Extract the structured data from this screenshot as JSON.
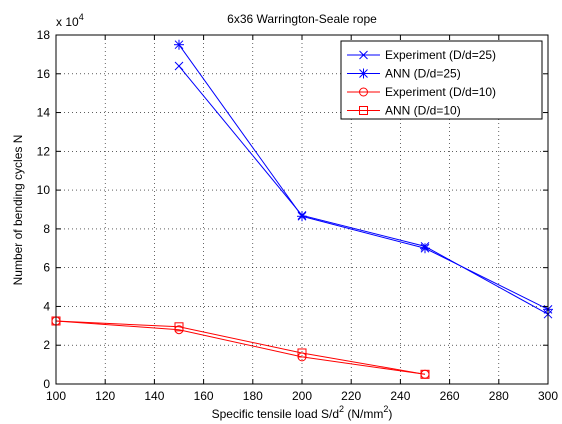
{
  "chart_data": {
    "type": "line",
    "title": "6x36 Warrington-Seale rope",
    "xlabel": "Specific tensile load S/d",
    "xlabel_sup": "2",
    "xlabel_unit": " (N/mm",
    "xlabel_unit_sup": "2",
    "xlabel_close": ")",
    "ylabel": "Number of bending cycles N",
    "y_multiplier_base": "x 10",
    "y_multiplier_exp": "4",
    "xlim": [
      100,
      300
    ],
    "ylim": [
      0,
      18
    ],
    "xticks": [
      100,
      120,
      140,
      160,
      180,
      200,
      220,
      240,
      260,
      280,
      300
    ],
    "yticks": [
      0,
      2,
      4,
      6,
      8,
      10,
      12,
      14,
      16,
      18
    ],
    "y_scale": 10000,
    "grid": "on",
    "legend_position": "top-right",
    "series": [
      {
        "name": "Experiment (D/d=25)",
        "color": "#0000ff",
        "marker": "x",
        "x": [
          150,
          200,
          250,
          300
        ],
        "y": [
          164000,
          87000,
          71000,
          36000
        ]
      },
      {
        "name": "ANN (D/d=25)",
        "color": "#0000ff",
        "marker": "asterisk",
        "x": [
          150,
          200,
          250,
          300
        ],
        "y": [
          175000,
          86500,
          70000,
          38500
        ]
      },
      {
        "name": "Experiment (D/d=10)",
        "color": "#ff0000",
        "marker": "circle",
        "x": [
          100,
          150,
          200,
          250
        ],
        "y": [
          32500,
          28000,
          14000,
          5000
        ]
      },
      {
        "name": "ANN (D/d=10)",
        "color": "#ff0000",
        "marker": "square",
        "x": [
          100,
          150,
          200,
          250
        ],
        "y": [
          32500,
          29500,
          16000,
          5000
        ]
      }
    ]
  }
}
